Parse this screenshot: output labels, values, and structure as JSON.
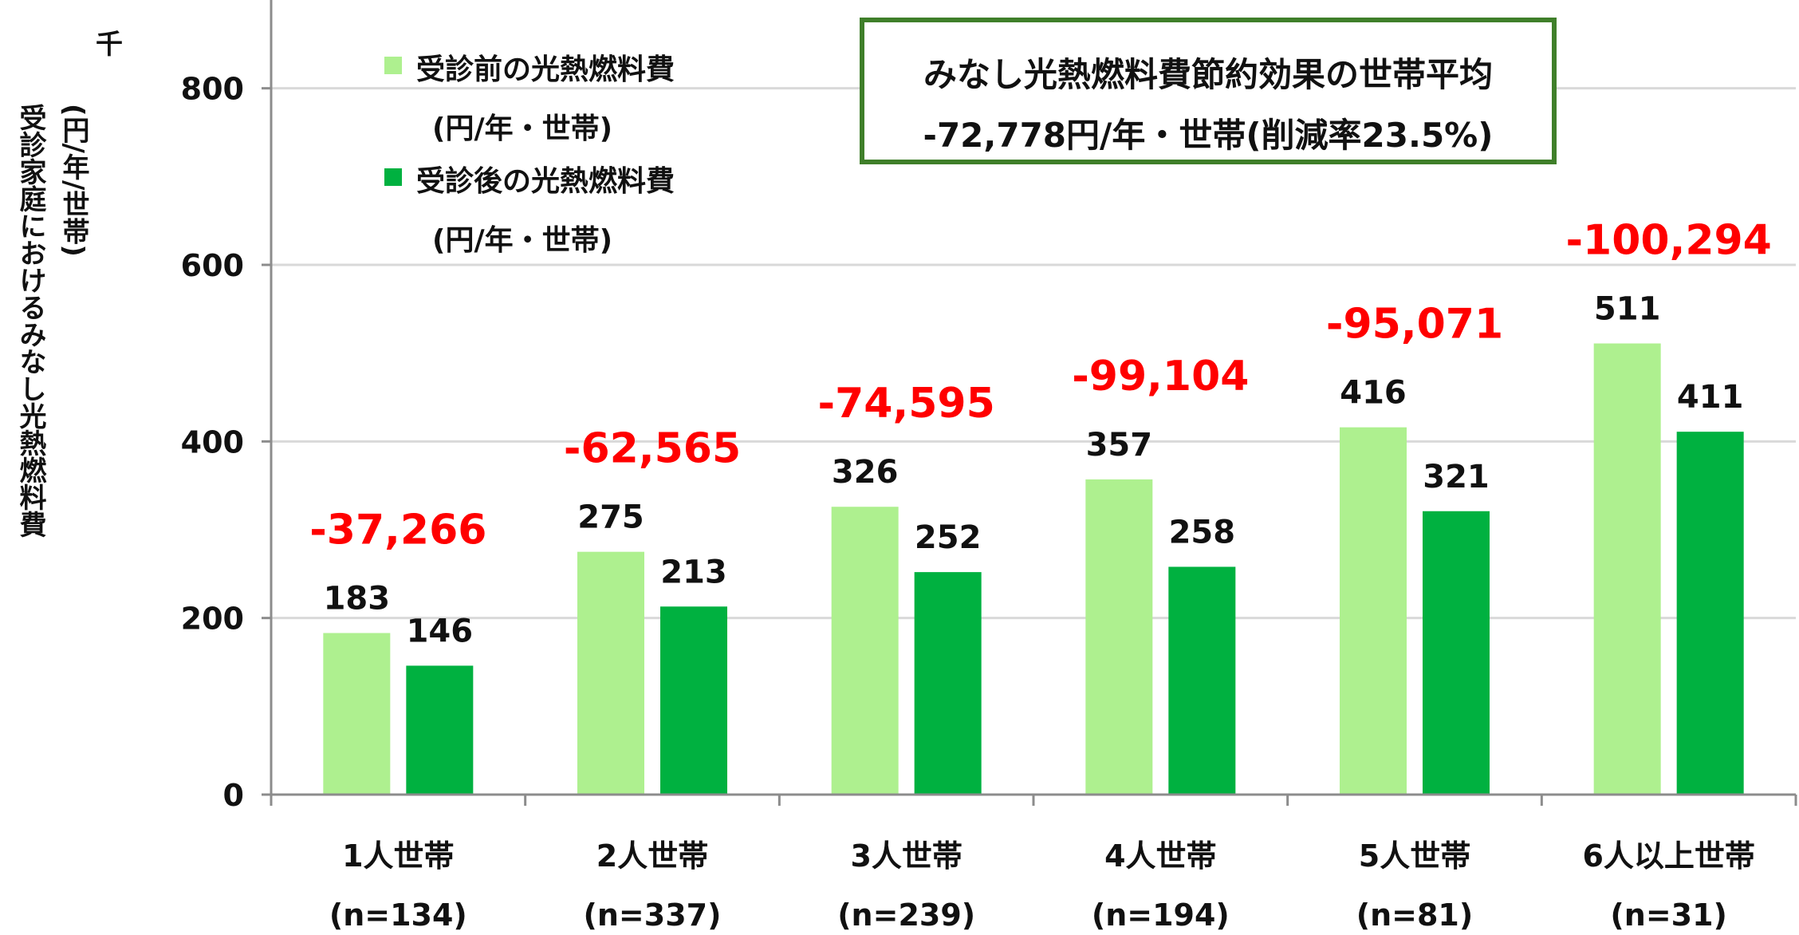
{
  "chart_data": {
    "type": "bar",
    "ylabel_line1": "受診家庭におけるみなし光熱燃料費",
    "ylabel_line2": "(円/年/世帯)",
    "y_unit": "千",
    "ylim": [
      0,
      900
    ],
    "yticks": [
      "0",
      "200",
      "400",
      "600",
      "800"
    ],
    "ytick_values": [
      0,
      200,
      400,
      600,
      800
    ],
    "grid": true,
    "legend_position": "top-left",
    "categories": [
      {
        "line1": "1人世帯",
        "line2": "(n=134)"
      },
      {
        "line1": "2人世帯",
        "line2": "(n=337)"
      },
      {
        "line1": "3人世帯",
        "line2": "(n=239)"
      },
      {
        "line1": "4人世帯",
        "line2": "(n=194)"
      },
      {
        "line1": "5人世帯",
        "line2": "(n=81)"
      },
      {
        "line1": "6人以上世帯",
        "line2": "(n=31)"
      }
    ],
    "series": [
      {
        "name_line1": "受診前の光熱燃料費",
        "name_line2": "(円/年・世帯)",
        "color": "#aef08f",
        "values": [
          183,
          275,
          326,
          357,
          416,
          511
        ],
        "labels": [
          "183",
          "275",
          "326",
          "357",
          "416",
          "511"
        ]
      },
      {
        "name_line1": "受診後の光熱燃料費",
        "name_line2": "(円/年・世帯)",
        "color": "#00b140",
        "values": [
          146,
          213,
          252,
          258,
          321,
          411
        ],
        "labels": [
          "146",
          "213",
          "252",
          "258",
          "321",
          "411"
        ]
      }
    ],
    "differences": [
      "-37,266",
      "-62,565",
      "-74,595",
      "-99,104",
      "-95,071",
      "-100,294"
    ],
    "difference_color": "#ff0000"
  },
  "summary": {
    "line1": "みなし光熱燃料費節約効果の世帯平均",
    "line2": "-72,778円/年・世帯(削減率23.5%)",
    "border_color": "#3f7f2a"
  }
}
